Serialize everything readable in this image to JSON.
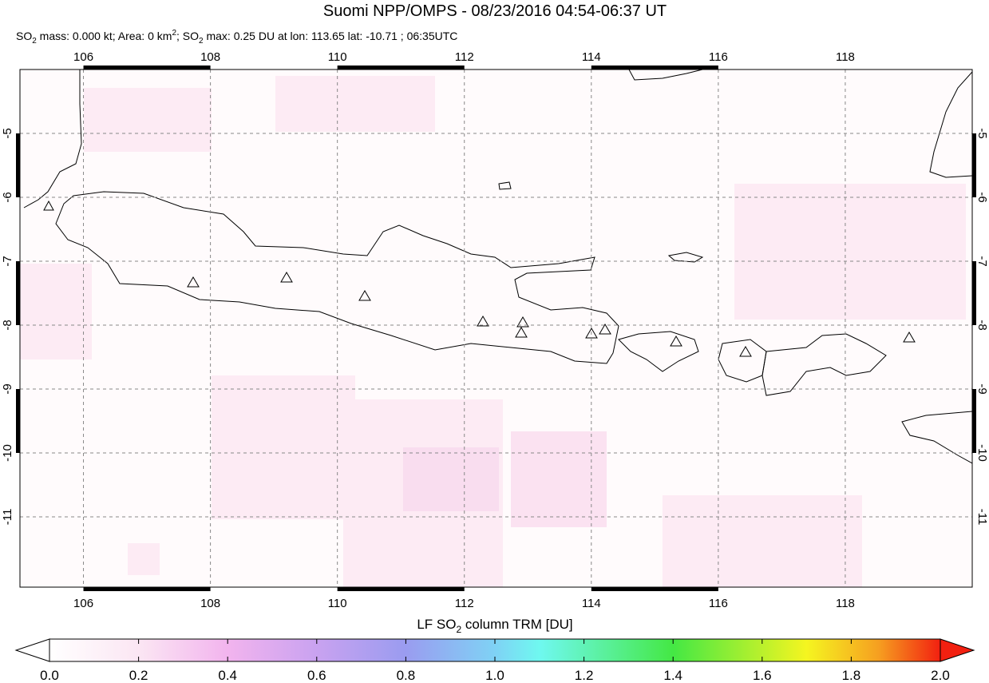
{
  "title": "Suomi NPP/OMPS - 08/23/2016 04:54-06:37 UT",
  "subtitle": [
    "SO",
    "2",
    " mass: 0.000 kt; Area: 0 km",
    "2",
    "; SO",
    "2",
    " max: 0.25 DU at lon: 113.65 lat: -10.71 ; 06:35UTC"
  ],
  "map": {
    "xlim": [
      105,
      120
    ],
    "ylim": [
      -12.1,
      -4
    ],
    "xticks": [
      106,
      108,
      110,
      112,
      114,
      116,
      118
    ],
    "yticks": [
      -5,
      -6,
      -7,
      -8,
      -9,
      -10,
      -11
    ],
    "grid": true
  },
  "colorbar": {
    "label": [
      "LF SO",
      "2",
      " column TRM [DU]"
    ],
    "lim": [
      0,
      2
    ],
    "ticks": [
      {
        "value": 0,
        "label": "0.0"
      },
      {
        "value": 0.2,
        "label": "0.2"
      },
      {
        "value": 0.4,
        "label": "0.4"
      },
      {
        "value": 0.6,
        "label": "0.6"
      },
      {
        "value": 0.8,
        "label": "0.8"
      },
      {
        "value": 1,
        "label": "1.0"
      },
      {
        "value": 1.2,
        "label": "1.2"
      },
      {
        "value": 1.4,
        "label": "1.4"
      },
      {
        "value": 1.6,
        "label": "1.6"
      },
      {
        "value": 1.8,
        "label": "1.8"
      },
      {
        "value": 2,
        "label": "2.0"
      }
    ]
  }
}
